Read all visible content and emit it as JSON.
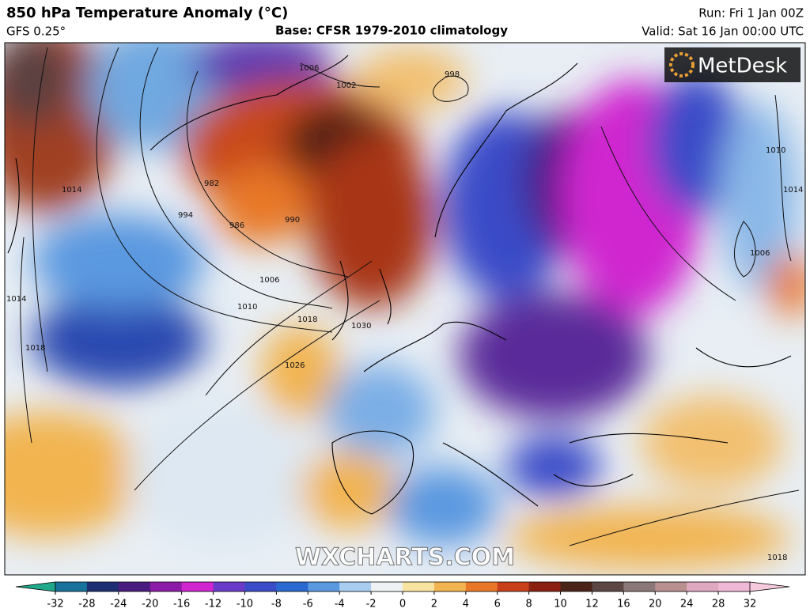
{
  "header": {
    "title": "850 hPa Temperature Anomaly (°C)",
    "model": "GFS 0.25°",
    "base": "Base: CFSR 1979-2010 climatology",
    "run": "Run: Fri 1 Jan 00Z",
    "valid": "Valid: Sat 16 Jan 00:00 UTC"
  },
  "logo": "MetDesk",
  "watermark": "WXCHARTS.COM",
  "isobar_labels": [
    1006,
    1002,
    998,
    982,
    994,
    986,
    990,
    1006,
    1010,
    1018,
    1026,
    1030,
    1014,
    1014,
    1018,
    1010,
    1014,
    1006,
    1018
  ],
  "colorbar": {
    "ticks": [
      -32,
      -28,
      -24,
      -20,
      -16,
      -12,
      -10,
      -8,
      -6,
      -4,
      -2,
      0,
      2,
      4,
      6,
      8,
      10,
      12,
      16,
      20,
      24,
      28,
      32
    ],
    "colors": [
      "#1fa88a",
      "#18739c",
      "#1d2f72",
      "#4a1c80",
      "#8c1ca8",
      "#d026d0",
      "#6a3ac8",
      "#3a4cc8",
      "#2a6ad0",
      "#5a98e0",
      "#a8cdf0",
      "#eef2f4",
      "#f8e4a0",
      "#f2b450",
      "#e87828",
      "#c8401a",
      "#8a2010",
      "#4a2418",
      "#5c4646",
      "#8c7878",
      "#b89090",
      "#e0a8c0",
      "#f0b8d4",
      "#f5c8dc"
    ]
  }
}
